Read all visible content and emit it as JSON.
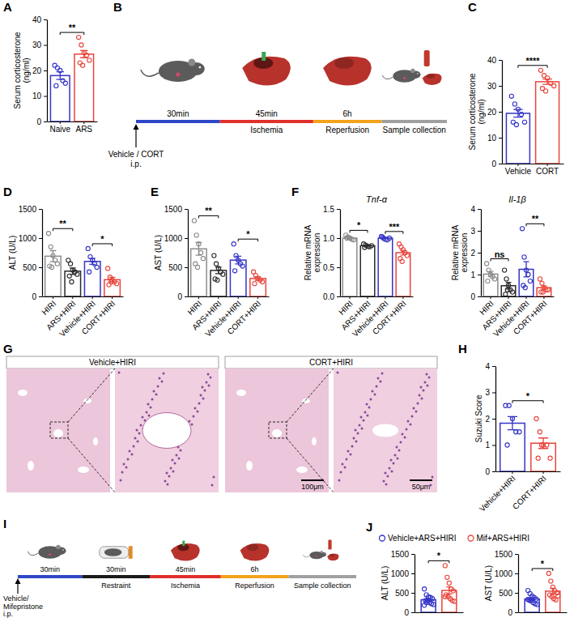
{
  "chart_data": [
    {
      "type": "bar",
      "panel": "A",
      "y_label": "Serum corticosterone (ng/ml)",
      "categories": [
        "Naive",
        "ARS"
      ],
      "colors": [
        "#3434c8",
        "#e8453c"
      ],
      "values": [
        18,
        26.4
      ],
      "errors": [
        1.5,
        1.4
      ],
      "points": [
        [
          22,
          21,
          20,
          16,
          15,
          14
        ],
        [
          33,
          30,
          27,
          26,
          24,
          23,
          22
        ]
      ],
      "ylim": [
        0,
        40
      ],
      "yticks": [
        0,
        10,
        20,
        30,
        40
      ],
      "annotations": [
        {
          "text": "**",
          "from": 0,
          "to": 1
        }
      ]
    },
    {
      "type": "bar",
      "panel": "C",
      "y_label": "Serum corticosterone (ng/ml)",
      "categories": [
        "Vehicle",
        "CORT"
      ],
      "colors": [
        "#3434c8",
        "#e8453c"
      ],
      "values": [
        19.4,
        31.6
      ],
      "errors": [
        1.5,
        1.0
      ],
      "points": [
        [
          26,
          23,
          21,
          19,
          16,
          16,
          15
        ],
        [
          36,
          34,
          33,
          31,
          30,
          29,
          28
        ]
      ],
      "ylim": [
        0,
        40
      ],
      "yticks": [
        0,
        10,
        20,
        30,
        40
      ],
      "annotations": [
        {
          "text": "****",
          "from": 0,
          "to": 1
        }
      ]
    },
    {
      "type": "bar",
      "panel": "D",
      "y_label": "ALT (U/L)",
      "categories": [
        "HIRI",
        "ARS+HIRI",
        "Vehicle+HIRI",
        "CORT+HIRI"
      ],
      "colors": [
        "#8c8c8c",
        "#2b2b2b",
        "#3434c8",
        "#e8453c"
      ],
      "values": [
        690,
        433,
        600,
        287
      ],
      "errors": [
        95,
        55,
        50,
        40
      ],
      "points": [
        [
          1080,
          850,
          700,
          620,
          560,
          520,
          500
        ],
        [
          620,
          560,
          450,
          420,
          380,
          350,
          250
        ],
        [
          820,
          680,
          620,
          560,
          500,
          420
        ],
        [
          480,
          330,
          280,
          250,
          220,
          200,
          250
        ]
      ],
      "ylim": [
        0,
        1500
      ],
      "yticks": [
        0,
        500,
        1000,
        1500
      ],
      "annotations": [
        {
          "text": "**",
          "from": 0,
          "to": 1
        },
        {
          "text": "*",
          "from": 2,
          "to": 3
        }
      ]
    },
    {
      "type": "bar",
      "panel": "E",
      "y_label": "AST (U/L)",
      "categories": [
        "HIRI",
        "ARS+HIRI",
        "Vehicle+HIRI",
        "CORT+HIRI"
      ],
      "colors": [
        "#8c8c8c",
        "#2b2b2b",
        "#3434c8",
        "#e8453c"
      ],
      "values": [
        816,
        446,
        623,
        307
      ],
      "errors": [
        110,
        55,
        65,
        30
      ],
      "points": [
        [
          1300,
          1050,
          900,
          750,
          650,
          560,
          500
        ],
        [
          700,
          560,
          480,
          420,
          380,
          300,
          280
        ],
        [
          900,
          700,
          620,
          560,
          520,
          440
        ],
        [
          420,
          360,
          310,
          280,
          250,
          220
        ]
      ],
      "ylim": [
        0,
        1500
      ],
      "yticks": [
        0,
        500,
        1000,
        1500
      ],
      "annotations": [
        {
          "text": "**",
          "from": 0,
          "to": 1
        },
        {
          "text": "*",
          "from": 2,
          "to": 3
        }
      ]
    },
    {
      "type": "bar",
      "panel": "F",
      "title": "Tnf-α",
      "y_label": "Relative mRNA expression",
      "categories": [
        "HIRI",
        "ARS+HIRI",
        "Vehicle+HIRI",
        "CORT+HIRI"
      ],
      "colors": [
        "#8c8c8c",
        "#2b2b2b",
        "#3434c8",
        "#e8453c"
      ],
      "values": [
        1.0,
        0.87,
        1.0,
        0.75
      ],
      "errors": [
        0.015,
        0.01,
        0.01,
        0.04
      ],
      "points": [
        [
          1.05,
          1.02,
          1.0,
          0.98,
          0.97,
          1.0
        ],
        [
          0.9,
          0.88,
          0.86,
          0.85,
          0.87,
          0.84
        ],
        [
          1.03,
          1.0,
          0.98,
          0.97,
          1.0,
          1.02
        ],
        [
          0.9,
          0.85,
          0.8,
          0.75,
          0.7,
          0.65,
          0.6
        ]
      ],
      "ylim": [
        0,
        1.5
      ],
      "yticks": [
        {
          "value": 0,
          "label": "0.0"
        },
        0.5,
        {
          "value": 1,
          "label": "1.0"
        },
        1.5
      ],
      "annotations": [
        {
          "text": "*",
          "from": 0,
          "to": 1
        },
        {
          "text": "***",
          "from": 2,
          "to": 3
        }
      ]
    },
    {
      "type": "bar",
      "title": "Il-1β",
      "y_label": "Relative mRNA expression",
      "categories": [
        "HIRI",
        "ARS+HIRI",
        "Vehicle+HIRI",
        "CORT+HIRI"
      ],
      "colors": [
        "#8c8c8c",
        "#2b2b2b",
        "#3434c8",
        "#e8453c"
      ],
      "values": [
        1.02,
        0.49,
        1.24,
        0.4
      ],
      "errors": [
        0.12,
        0.15,
        0.35,
        0.08
      ],
      "points": [
        [
          1.5,
          1.2,
          1.0,
          0.9,
          0.8,
          0.7
        ],
        [
          1.2,
          0.8,
          0.5,
          0.3,
          0.2,
          0.1,
          0.3
        ],
        [
          3.1,
          1.8,
          1.2,
          1.0,
          0.7,
          0.5,
          0.4
        ],
        [
          0.8,
          0.6,
          0.4,
          0.3,
          0.3,
          0.2,
          0.2
        ]
      ],
      "ylim": [
        0,
        4
      ],
      "yticks": [
        0,
        1,
        2,
        3,
        4
      ],
      "annotations": [
        {
          "text": "ns",
          "from": 0,
          "to": 1
        },
        {
          "text": "**",
          "from": 2,
          "to": 3
        }
      ]
    },
    {
      "type": "bar",
      "panel": "H",
      "y_label": "Suzuki Score",
      "categories": [
        "Vehicle+HIRI",
        "CORT+HIRI"
      ],
      "colors": [
        "#3434c8",
        "#e8453c"
      ],
      "values": [
        1.83,
        1.07
      ],
      "errors": [
        0.25,
        0.2
      ],
      "points": [
        [
          2.5,
          2.5,
          2,
          1.5,
          1.5,
          1
        ],
        [
          2,
          1.5,
          1,
          1,
          0.5,
          0.5,
          1
        ]
      ],
      "ylim": [
        0,
        4
      ],
      "yticks": [
        0,
        1,
        2,
        3,
        4
      ],
      "annotations": [
        {
          "text": "*",
          "from": 0,
          "to": 1
        }
      ]
    },
    {
      "type": "bar",
      "panel": "J",
      "y_label": "ALT (U/L)",
      "categories": [
        null
      ],
      "tick_labels": "y",
      "legend": "top",
      "series": [
        {
          "name": "Vehicle+ARS+HIRI",
          "color": "#3434c8",
          "values": [
            323
          ],
          "errors": [
            35
          ],
          "points": [
            [
              600,
              450,
              400,
              380,
              350,
              300,
              300,
              250,
              220,
              200,
              180,
              250
            ]
          ]
        },
        {
          "name": "Mif+ARS+HIRI",
          "color": "#e8453c",
          "values": [
            562
          ],
          "errors": [
            90
          ],
          "points": [
            [
              1200,
              900,
              750,
              600,
              550,
              450,
              400,
              350,
              300,
              280,
              400
            ]
          ]
        }
      ],
      "ylim": [
        0,
        1500
      ],
      "yticks": [
        0,
        500,
        1000,
        1500
      ],
      "annotations": [
        {
          "text": "*",
          "from": 0,
          "to": 1
        }
      ]
    },
    {
      "type": "bar",
      "y_label": "AST (U/L)",
      "categories": [
        null
      ],
      "tick_labels": "y",
      "series": [
        {
          "color": "#3434c8",
          "values": [
            342
          ],
          "errors": [
            35
          ],
          "points": [
            [
              560,
              480,
              420,
              380,
              340,
              320,
              300,
              250,
              220,
              200,
              330,
              300
            ]
          ]
        },
        {
          "color": "#e8453c",
          "values": [
            544
          ],
          "errors": [
            75
          ],
          "points": [
            [
              1000,
              800,
              650,
              550,
              500,
              450,
              400,
              350,
              320,
              420
            ]
          ]
        }
      ],
      "ylim": [
        0,
        1500
      ],
      "yticks": [
        0,
        500,
        1000,
        1500
      ],
      "annotations": [
        {
          "text": "*",
          "from": 0,
          "to": 1
        }
      ]
    }
  ],
  "diagrams": [
    {
      "panel": "B",
      "start_label": [
        "Vehicle / CORT",
        "i.p."
      ],
      "steps": [
        {
          "time": "30min",
          "color": "#2f47c6"
        },
        {
          "time": "45min",
          "name": "Ischemia",
          "color": "#e0302a"
        },
        {
          "time": "6h",
          "name": "Reperfusion",
          "color": "#f2a31b"
        },
        {
          "name": "Sample collection",
          "color": "#a0a0a0"
        }
      ]
    },
    {
      "panel": "I",
      "start_label": [
        "Vehicle/",
        "Mifepristone",
        "i.p."
      ],
      "steps": [
        {
          "time": "30min",
          "color": "#2f47c6"
        },
        {
          "time": "30min",
          "name": "Restraint",
          "color": "#1a1a1a"
        },
        {
          "time": "45min",
          "name": "Ischemia",
          "color": "#e0302a"
        },
        {
          "time": "6h",
          "name": "Reperfusion",
          "color": "#f2a31b"
        },
        {
          "name": "Sample collection",
          "color": "#a0a0a0"
        }
      ]
    }
  ],
  "images": {
    "panel": "G",
    "panels": [
      {
        "title": "Vehicle+HIRI"
      },
      {
        "title": "CORT+HIRI",
        "scale_bars": [
          "100μm",
          "50μm"
        ]
      }
    ]
  }
}
